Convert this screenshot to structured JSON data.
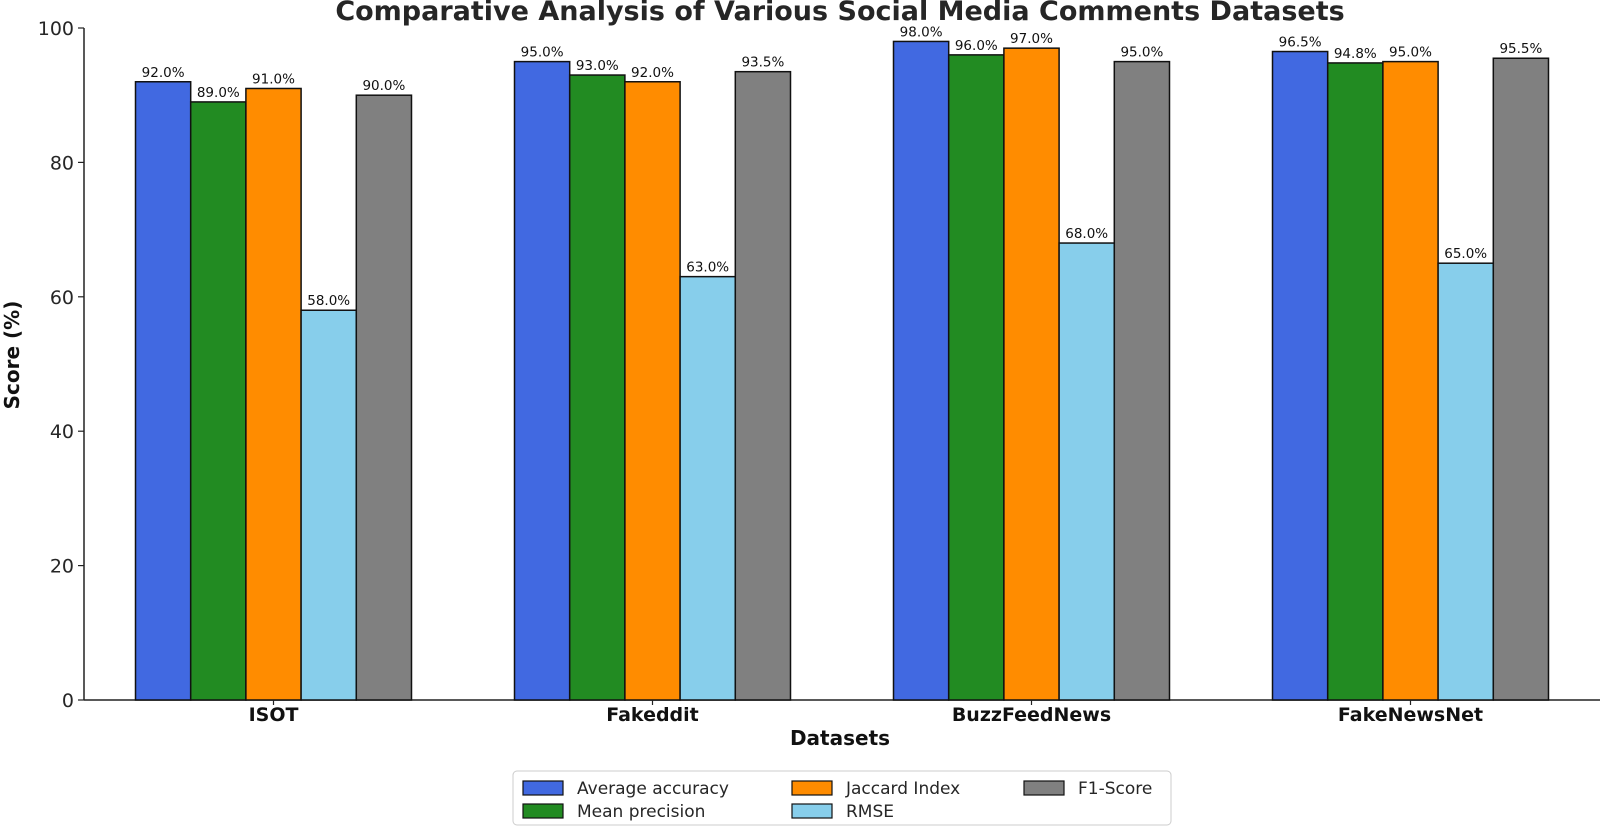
{
  "chart_data": {
    "type": "bar",
    "title": "Comparative Analysis of Various Social Media Comments Datasets",
    "xlabel": "Datasets",
    "ylabel": "Score (%)",
    "ylim": [
      0,
      100
    ],
    "yticks": [
      "0",
      "20",
      "40",
      "60",
      "80",
      "100"
    ],
    "categories": [
      "ISOT",
      "Fakeddit",
      "BuzzFeedNews",
      "FakeNewsNet"
    ],
    "series": [
      {
        "name": "Average accuracy",
        "color": "#4169e1",
        "values": [
          92.0,
          95.0,
          98.0,
          96.5
        ],
        "labels": [
          "92.0%",
          "95.0%",
          "98.0%",
          "96.5%"
        ]
      },
      {
        "name": "Mean precision",
        "color": "#228b22",
        "values": [
          89.0,
          93.0,
          96.0,
          94.8
        ],
        "labels": [
          "89.0%",
          "93.0%",
          "96.0%",
          "94.8%"
        ]
      },
      {
        "name": "Jaccard Index",
        "color": "#ff8c00",
        "values": [
          91.0,
          92.0,
          97.0,
          95.0
        ],
        "labels": [
          "91.0%",
          "92.0%",
          "97.0%",
          "95.0%"
        ]
      },
      {
        "name": "RMSE",
        "color": "#87ceeb",
        "values": [
          58.0,
          63.0,
          68.0,
          65.0
        ],
        "labels": [
          "58.0%",
          "63.0%",
          "68.0%",
          "65.0%"
        ]
      },
      {
        "name": "F1-Score",
        "color": "#808080",
        "values": [
          90.0,
          93.5,
          95.0,
          95.5
        ],
        "labels": [
          "90.0%",
          "93.5%",
          "95.0%",
          "95.5%"
        ]
      }
    ],
    "legend": {
      "position": "bottom-center",
      "columns": 3
    },
    "grid": false
  }
}
